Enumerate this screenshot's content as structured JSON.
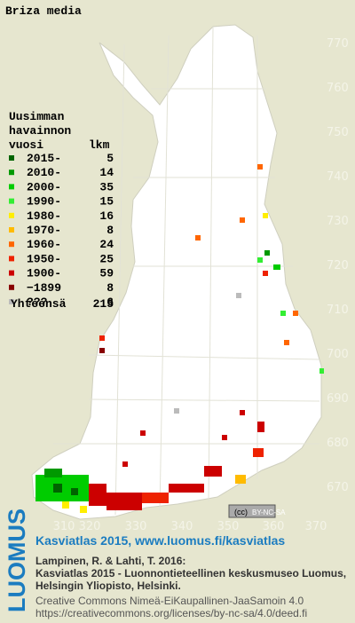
{
  "title": "Briza media",
  "legend": {
    "header": [
      "Uusimman",
      "havainnon"
    ],
    "col_year": "vuosi",
    "col_count": "lkm",
    "rows": [
      {
        "label": "2015-",
        "count": "5",
        "color": "#006400"
      },
      {
        "label": "2010-",
        "count": "14",
        "color": "#009900"
      },
      {
        "label": "2000-",
        "count": "35",
        "color": "#00cc00"
      },
      {
        "label": "1990-",
        "count": "15",
        "color": "#33ee33"
      },
      {
        "label": "1980-",
        "count": "16",
        "color": "#ffee00"
      },
      {
        "label": "1970-",
        "count": "8",
        "color": "#ffbb00"
      },
      {
        "label": "1960-",
        "count": "24",
        "color": "#ff6600"
      },
      {
        "label": "1950-",
        "count": "25",
        "color": "#ee2200"
      },
      {
        "label": "1900-",
        "count": "59",
        "color": "#cc0000"
      },
      {
        "label": "−1899",
        "count": "8",
        "color": "#880000"
      },
      {
        "label": "???",
        "count": "6",
        "color": "#bbbbbb"
      }
    ],
    "total_label": "Yhteensä",
    "total": "215"
  },
  "grid_y_labels": [
    "770",
    "760",
    "750",
    "740",
    "730",
    "720",
    "710",
    "700",
    "690",
    "680",
    "670"
  ],
  "grid_x_labels": [
    "310",
    "320",
    "330",
    "340",
    "350",
    "360",
    "370"
  ],
  "license_badge": "BY-NC-SA",
  "footer": {
    "brand": "LUOMUS",
    "headline": "Kasviatlas 2015, www.luomus.fi/kasviatlas",
    "citation": [
      "Lampinen, R. & Lahti, T. 2016:",
      "Kasviatlas 2015 - Luonnontieteellinen keskusmuseo Luomus,",
      "Helsingin Yliopisto, Helsinki."
    ],
    "license": [
      "Creative Commons Nimeä-EiKaupallinen-JaaSamoin 4.0",
      "https://creativecommons.org/licenses/by-nc-sa/4.0/deed.fi"
    ]
  }
}
